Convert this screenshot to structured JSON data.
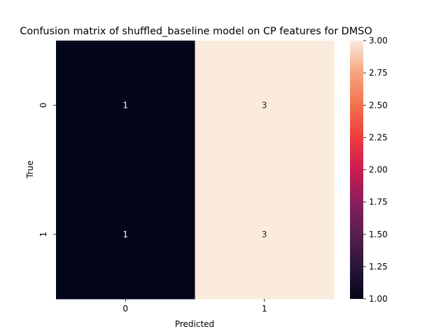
{
  "chart_data": {
    "type": "heatmap",
    "title": "Confusion matrix of shuffled_baseline model on CP features for DMSO",
    "xlabel": "Predicted",
    "ylabel": "True",
    "x_categories": [
      "0",
      "1"
    ],
    "y_categories": [
      "0",
      "1"
    ],
    "values": [
      [
        1,
        3
      ],
      [
        1,
        3
      ]
    ],
    "cell_labels": [
      [
        "1",
        "3"
      ],
      [
        "1",
        "3"
      ]
    ],
    "colorbar": {
      "range": [
        1.0,
        3.0
      ],
      "ticks": [
        1.0,
        1.25,
        1.5,
        1.75,
        2.0,
        2.25,
        2.5,
        2.75,
        3.0
      ],
      "tick_labels": [
        "1.00",
        "1.25",
        "1.50",
        "1.75",
        "2.00",
        "2.25",
        "2.50",
        "2.75",
        "3.00"
      ],
      "colormap": "rocket"
    },
    "colors": {
      "low": "#03051a",
      "high": "#faebdd",
      "low_label_color": "#ffffff",
      "high_label_color": "#262626"
    }
  }
}
